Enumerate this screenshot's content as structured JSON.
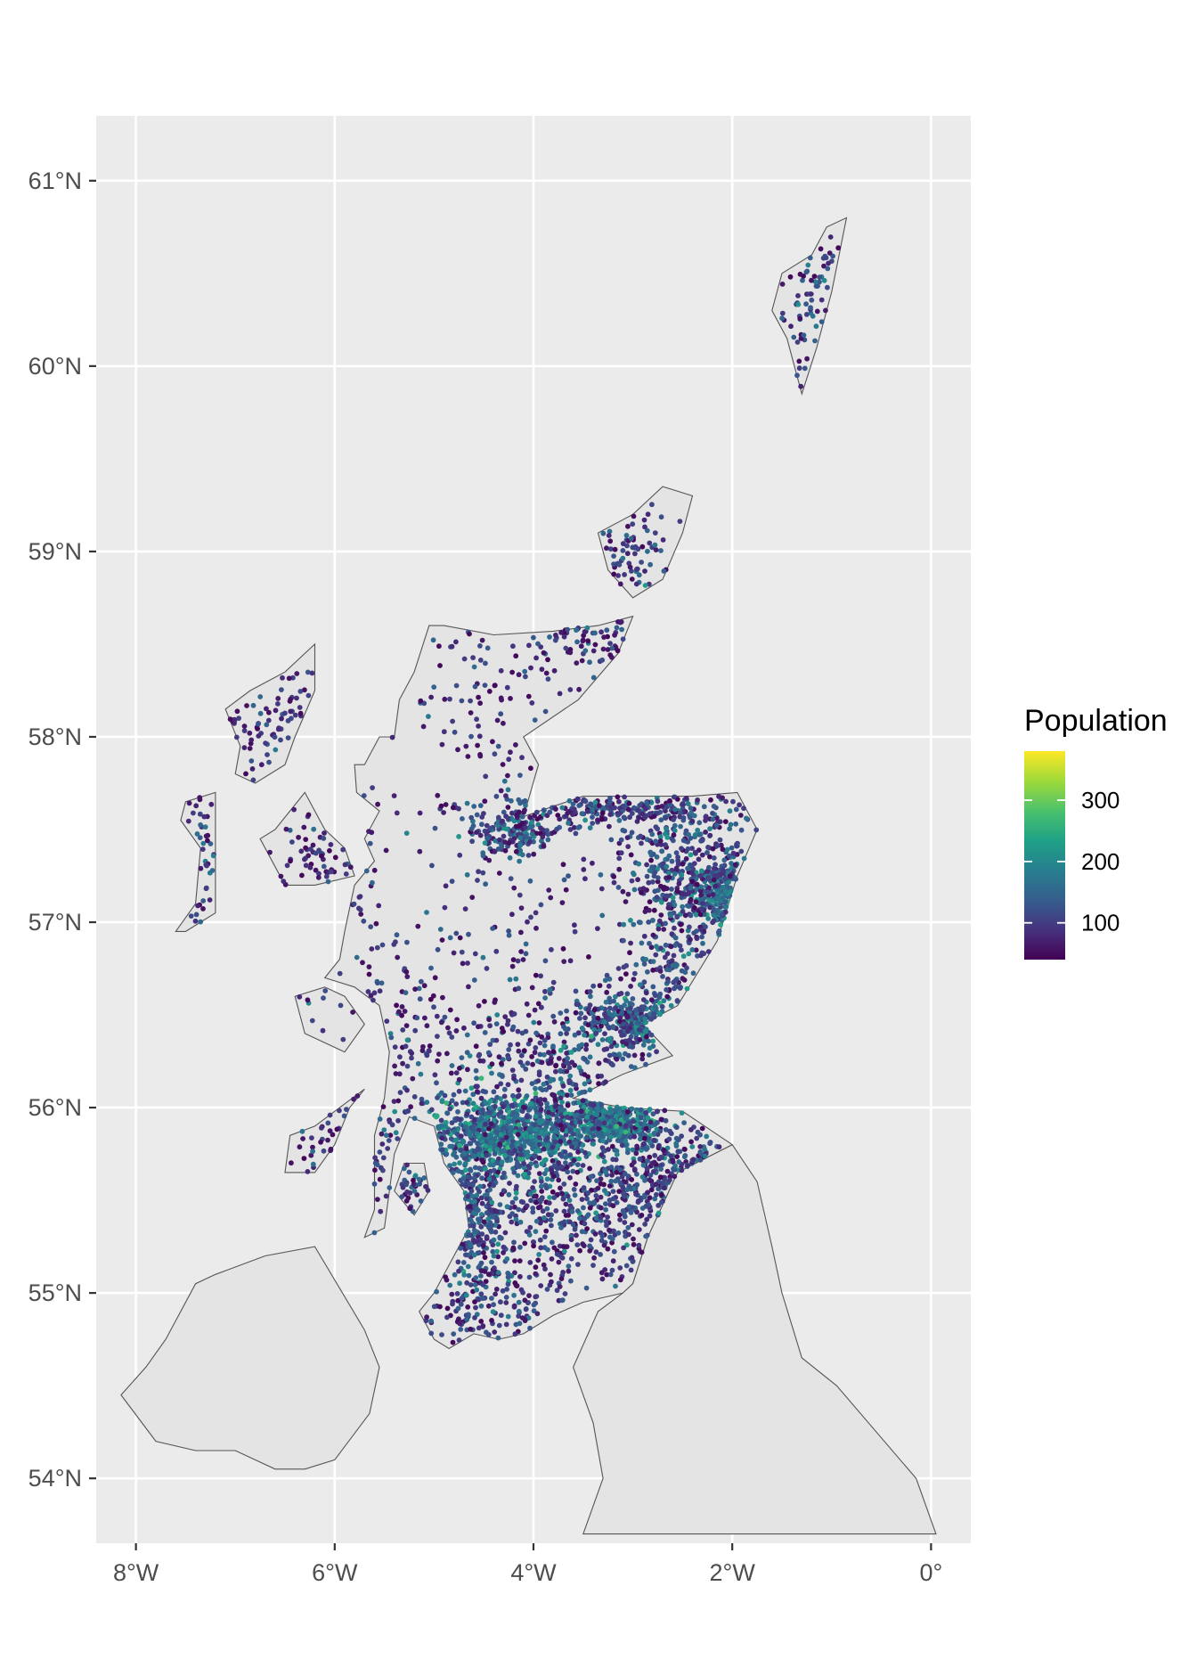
{
  "chart_data": {
    "type": "scatter",
    "subtype": "geographic-point-map",
    "title": "",
    "xlabel": "",
    "ylabel": "",
    "xlim": [
      -8.4,
      0.4
    ],
    "ylim": [
      53.65,
      61.35
    ],
    "x_ticks": [
      {
        "value": -8,
        "label": "8°W"
      },
      {
        "value": -6,
        "label": "6°W"
      },
      {
        "value": -4,
        "label": "4°W"
      },
      {
        "value": -2,
        "label": "2°W"
      },
      {
        "value": 0,
        "label": "0°"
      }
    ],
    "y_ticks": [
      {
        "value": 54,
        "label": "54°N"
      },
      {
        "value": 55,
        "label": "55°N"
      },
      {
        "value": 56,
        "label": "56°N"
      },
      {
        "value": 57,
        "label": "57°N"
      },
      {
        "value": 58,
        "label": "58°N"
      },
      {
        "value": 59,
        "label": "59°N"
      },
      {
        "value": 60,
        "label": "60°N"
      },
      {
        "value": 61,
        "label": "61°N"
      }
    ],
    "grid": true,
    "panel_background": "#ebebeb",
    "land_fill": "#e4e4e4",
    "land_stroke": "#555555",
    "legend": {
      "title": "Population",
      "placement": "right",
      "colormap": "viridis",
      "range": [
        40,
        380
      ],
      "ticks": [
        {
          "value": 100,
          "label": "100"
        },
        {
          "value": 200,
          "label": "200"
        },
        {
          "value": 300,
          "label": "300"
        }
      ]
    },
    "colors": [
      "#440154",
      "#46327e",
      "#365c8d",
      "#277f8e",
      "#1fa187",
      "#4ac16d",
      "#a0da39",
      "#fde725"
    ],
    "land_polygons": [
      {
        "name": "Scottish mainland",
        "coords": [
          [
            -3.0,
            58.65
          ],
          [
            -3.35,
            58.6
          ],
          [
            -3.8,
            58.57
          ],
          [
            -4.4,
            58.55
          ],
          [
            -4.9,
            58.6
          ],
          [
            -5.05,
            58.6
          ],
          [
            -5.2,
            58.35
          ],
          [
            -5.35,
            58.2
          ],
          [
            -5.4,
            58.0
          ],
          [
            -5.55,
            58.0
          ],
          [
            -5.7,
            57.85
          ],
          [
            -5.8,
            57.85
          ],
          [
            -5.78,
            57.7
          ],
          [
            -5.55,
            57.6
          ],
          [
            -5.7,
            57.45
          ],
          [
            -5.6,
            57.33
          ],
          [
            -5.8,
            57.2
          ],
          [
            -5.9,
            56.95
          ],
          [
            -5.95,
            56.8
          ],
          [
            -6.1,
            56.7
          ],
          [
            -5.8,
            56.65
          ],
          [
            -5.55,
            56.55
          ],
          [
            -5.45,
            56.3
          ],
          [
            -5.5,
            56.05
          ],
          [
            -5.6,
            55.85
          ],
          [
            -5.6,
            55.45
          ],
          [
            -5.7,
            55.3
          ],
          [
            -5.5,
            55.35
          ],
          [
            -5.4,
            55.75
          ],
          [
            -5.25,
            55.95
          ],
          [
            -5.0,
            55.9
          ],
          [
            -4.9,
            55.7
          ],
          [
            -4.7,
            55.55
          ],
          [
            -4.65,
            55.35
          ],
          [
            -4.85,
            55.15
          ],
          [
            -5.0,
            55.0
          ],
          [
            -5.15,
            54.9
          ],
          [
            -5.0,
            54.75
          ],
          [
            -4.85,
            54.7
          ],
          [
            -4.6,
            54.78
          ],
          [
            -4.35,
            54.75
          ],
          [
            -4.1,
            54.78
          ],
          [
            -3.8,
            54.88
          ],
          [
            -3.5,
            54.95
          ],
          [
            -3.1,
            55.0
          ],
          [
            -3.0,
            55.05
          ],
          [
            -2.85,
            55.3
          ],
          [
            -2.55,
            55.65
          ],
          [
            -2.0,
            55.8
          ],
          [
            -2.5,
            55.98
          ],
          [
            -3.1,
            56.0
          ],
          [
            -3.6,
            56.05
          ],
          [
            -3.1,
            56.18
          ],
          [
            -2.6,
            56.28
          ],
          [
            -2.9,
            56.45
          ],
          [
            -2.55,
            56.55
          ],
          [
            -2.15,
            56.9
          ],
          [
            -1.95,
            57.25
          ],
          [
            -1.75,
            57.5
          ],
          [
            -1.95,
            57.7
          ],
          [
            -2.4,
            57.68
          ],
          [
            -3.0,
            57.68
          ],
          [
            -3.5,
            57.68
          ],
          [
            -4.1,
            57.57
          ],
          [
            -3.95,
            57.85
          ],
          [
            -4.1,
            58.0
          ],
          [
            -3.55,
            58.2
          ],
          [
            -3.15,
            58.45
          ],
          [
            -3.0,
            58.65
          ]
        ]
      },
      {
        "name": "Lewis and Harris",
        "coords": [
          [
            -6.2,
            58.5
          ],
          [
            -6.5,
            58.35
          ],
          [
            -6.85,
            58.25
          ],
          [
            -7.1,
            58.15
          ],
          [
            -6.95,
            57.95
          ],
          [
            -7.0,
            57.8
          ],
          [
            -6.8,
            57.75
          ],
          [
            -6.5,
            57.85
          ],
          [
            -6.4,
            58.0
          ],
          [
            -6.2,
            58.25
          ],
          [
            -6.2,
            58.5
          ]
        ]
      },
      {
        "name": "Uists",
        "coords": [
          [
            -7.2,
            57.7
          ],
          [
            -7.5,
            57.65
          ],
          [
            -7.55,
            57.55
          ],
          [
            -7.35,
            57.4
          ],
          [
            -7.4,
            57.1
          ],
          [
            -7.6,
            56.95
          ],
          [
            -7.5,
            56.95
          ],
          [
            -7.2,
            57.05
          ],
          [
            -7.2,
            57.7
          ]
        ]
      },
      {
        "name": "Skye",
        "coords": [
          [
            -6.3,
            57.7
          ],
          [
            -6.6,
            57.5
          ],
          [
            -6.75,
            57.45
          ],
          [
            -6.5,
            57.2
          ],
          [
            -6.2,
            57.2
          ],
          [
            -5.8,
            57.25
          ],
          [
            -5.9,
            57.4
          ],
          [
            -6.1,
            57.5
          ],
          [
            -6.3,
            57.7
          ]
        ]
      },
      {
        "name": "Mull",
        "coords": [
          [
            -6.4,
            56.6
          ],
          [
            -6.3,
            56.4
          ],
          [
            -5.9,
            56.3
          ],
          [
            -5.7,
            56.45
          ],
          [
            -5.9,
            56.6
          ],
          [
            -6.1,
            56.65
          ],
          [
            -6.4,
            56.6
          ]
        ]
      },
      {
        "name": "Islay and Jura",
        "coords": [
          [
            -6.45,
            55.85
          ],
          [
            -6.5,
            55.65
          ],
          [
            -6.2,
            55.65
          ],
          [
            -6.0,
            55.8
          ],
          [
            -5.85,
            56.0
          ],
          [
            -5.7,
            56.1
          ],
          [
            -5.95,
            56.0
          ],
          [
            -6.2,
            55.9
          ],
          [
            -6.45,
            55.85
          ]
        ]
      },
      {
        "name": "Arran",
        "coords": [
          [
            -5.3,
            55.7
          ],
          [
            -5.4,
            55.55
          ],
          [
            -5.2,
            55.42
          ],
          [
            -5.05,
            55.55
          ],
          [
            -5.1,
            55.7
          ],
          [
            -5.3,
            55.7
          ]
        ]
      },
      {
        "name": "Mainland Orkney",
        "coords": [
          [
            -3.35,
            59.1
          ],
          [
            -3.25,
            58.9
          ],
          [
            -3.0,
            58.75
          ],
          [
            -2.7,
            58.85
          ],
          [
            -2.5,
            59.1
          ],
          [
            -2.4,
            59.3
          ],
          [
            -2.7,
            59.35
          ],
          [
            -3.0,
            59.2
          ],
          [
            -3.35,
            59.1
          ]
        ]
      },
      {
        "name": "Shetland",
        "coords": [
          [
            -1.3,
            59.85
          ],
          [
            -1.15,
            60.1
          ],
          [
            -1.0,
            60.4
          ],
          [
            -0.85,
            60.8
          ],
          [
            -1.05,
            60.75
          ],
          [
            -1.2,
            60.6
          ],
          [
            -1.5,
            60.5
          ],
          [
            -1.6,
            60.3
          ],
          [
            -1.45,
            60.15
          ],
          [
            -1.3,
            59.85
          ]
        ]
      },
      {
        "name": "Northern Ireland",
        "coords": [
          [
            -6.2,
            55.25
          ],
          [
            -5.7,
            54.8
          ],
          [
            -5.55,
            54.6
          ],
          [
            -5.65,
            54.35
          ],
          [
            -6.0,
            54.1
          ],
          [
            -6.3,
            54.05
          ],
          [
            -6.6,
            54.05
          ],
          [
            -7.0,
            54.15
          ],
          [
            -7.4,
            54.15
          ],
          [
            -7.8,
            54.2
          ],
          [
            -8.15,
            54.45
          ],
          [
            -7.9,
            54.6
          ],
          [
            -7.7,
            54.75
          ],
          [
            -7.4,
            55.05
          ],
          [
            -7.2,
            55.1
          ],
          [
            -6.7,
            55.2
          ],
          [
            -6.2,
            55.25
          ]
        ]
      },
      {
        "name": "Northern England",
        "coords": [
          [
            -2.0,
            55.8
          ],
          [
            -1.75,
            55.6
          ],
          [
            -1.6,
            55.25
          ],
          [
            -1.5,
            55.0
          ],
          [
            -1.3,
            54.65
          ],
          [
            -0.95,
            54.5
          ],
          [
            -0.55,
            54.25
          ],
          [
            -0.15,
            54.0
          ],
          [
            0.05,
            53.7
          ],
          [
            -3.5,
            53.7
          ],
          [
            -3.3,
            54.0
          ],
          [
            -3.4,
            54.3
          ],
          [
            -3.6,
            54.6
          ],
          [
            -3.35,
            54.9
          ],
          [
            -3.1,
            55.0
          ],
          [
            -3.0,
            55.05
          ],
          [
            -2.85,
            55.3
          ],
          [
            -2.55,
            55.65
          ],
          [
            -2.0,
            55.8
          ]
        ]
      }
    ],
    "point_clusters": [
      {
        "center": [
          -4.25,
          55.86
        ],
        "spread": [
          0.45,
          0.12
        ],
        "count": 900,
        "value_mean": 160
      },
      {
        "center": [
          -3.2,
          55.93
        ],
        "spread": [
          0.25,
          0.07
        ],
        "count": 450,
        "value_mean": 160
      },
      {
        "center": [
          -2.1,
          57.15
        ],
        "spread": [
          0.15,
          0.1
        ],
        "count": 220,
        "value_mean": 160
      },
      {
        "center": [
          -2.5,
          57.3
        ],
        "spread": [
          0.35,
          0.22
        ],
        "count": 380,
        "value_mean": 110
      },
      {
        "center": [
          -2.97,
          56.47
        ],
        "spread": [
          0.2,
          0.06
        ],
        "count": 200,
        "value_mean": 150
      },
      {
        "center": [
          -3.6,
          56.3
        ],
        "spread": [
          0.6,
          0.15
        ],
        "count": 320,
        "value_mean": 110
      },
      {
        "center": [
          -4.22,
          57.48
        ],
        "spread": [
          0.2,
          0.06
        ],
        "count": 160,
        "value_mean": 130
      },
      {
        "center": [
          -3.3,
          57.62
        ],
        "spread": [
          0.6,
          0.05
        ],
        "count": 220,
        "value_mean": 100
      },
      {
        "center": [
          -3.6,
          55.4
        ],
        "spread": [
          0.7,
          0.25
        ],
        "count": 500,
        "value_mean": 100
      },
      {
        "center": [
          -2.55,
          55.6
        ],
        "spread": [
          0.35,
          0.15
        ],
        "count": 220,
        "value_mean": 100
      },
      {
        "center": [
          -4.6,
          55.45
        ],
        "spread": [
          0.15,
          0.2
        ],
        "count": 200,
        "value_mean": 130
      },
      {
        "center": [
          -4.6,
          54.9
        ],
        "spread": [
          0.4,
          0.1
        ],
        "count": 120,
        "value_mean": 90
      },
      {
        "center": [
          -2.6,
          56.8
        ],
        "spread": [
          0.25,
          0.2
        ],
        "count": 150,
        "value_mean": 110
      },
      {
        "center": [
          -4.3,
          56.8
        ],
        "spread": [
          0.9,
          0.5
        ],
        "count": 220,
        "value_mean": 80
      },
      {
        "center": [
          -4.4,
          58.3
        ],
        "spread": [
          0.7,
          0.3
        ],
        "count": 100,
        "value_mean": 80
      },
      {
        "center": [
          -3.4,
          58.55
        ],
        "spread": [
          0.3,
          0.08
        ],
        "count": 60,
        "value_mean": 90
      },
      {
        "center": [
          -5.5,
          56.4
        ],
        "spread": [
          0.3,
          0.4
        ],
        "count": 80,
        "value_mean": 90
      },
      {
        "center": [
          -6.1,
          57.35
        ],
        "spread": [
          0.3,
          0.2
        ],
        "count": 70,
        "value_mean": 80
      },
      {
        "center": [
          -6.6,
          58.1
        ],
        "spread": [
          0.35,
          0.25
        ],
        "count": 80,
        "value_mean": 80
      },
      {
        "center": [
          -7.35,
          57.3
        ],
        "spread": [
          0.1,
          0.3
        ],
        "count": 40,
        "value_mean": 80
      },
      {
        "center": [
          -2.95,
          59.0
        ],
        "spread": [
          0.25,
          0.15
        ],
        "count": 70,
        "value_mean": 100
      },
      {
        "center": [
          -1.2,
          60.3
        ],
        "spread": [
          0.15,
          0.3
        ],
        "count": 70,
        "value_mean": 90
      },
      {
        "center": [
          -5.9,
          55.75
        ],
        "spread": [
          0.25,
          0.2
        ],
        "count": 50,
        "value_mean": 80
      },
      {
        "center": [
          -5.2,
          55.55
        ],
        "spread": [
          0.08,
          0.1
        ],
        "count": 25,
        "value_mean": 90
      }
    ]
  }
}
